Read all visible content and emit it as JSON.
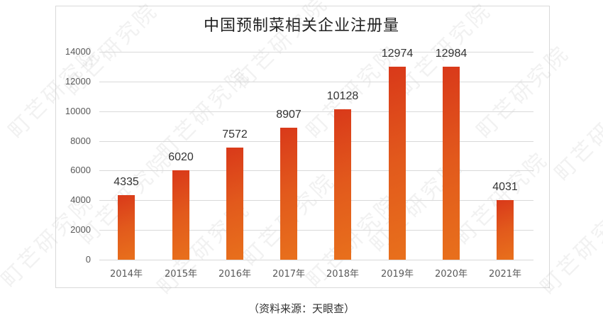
{
  "chart_data": {
    "type": "bar",
    "title": "中国预制菜相关企业注册量",
    "categories": [
      "2014年",
      "2015年",
      "2016年",
      "2017年",
      "2018年",
      "2019年",
      "2020年",
      "2021年"
    ],
    "values": [
      4335,
      6020,
      7572,
      8907,
      10128,
      12974,
      12984,
      4031
    ],
    "xlabel": "",
    "ylabel": "",
    "ylim": [
      0,
      14000
    ],
    "yticks": [
      0,
      2000,
      4000,
      6000,
      8000,
      10000,
      12000,
      14000
    ],
    "grid": true,
    "legend": "none",
    "data_labels": true,
    "bar_color": [
      "#d9391a",
      "#e8701c"
    ]
  },
  "source": "（资料来源：天眼查）",
  "watermark": "町芒研究院"
}
